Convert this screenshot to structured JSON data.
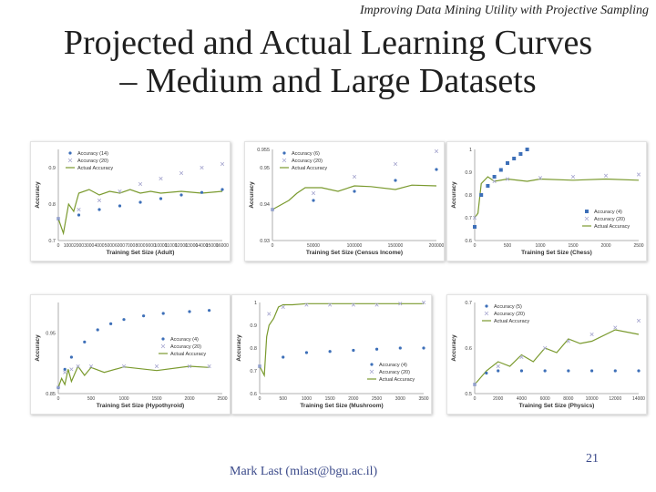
{
  "slide": {
    "header_note": "Improving Data Mining Utility with Projective Sampling",
    "title_line1": "Projected and Actual Learning Curves",
    "title_line2": "– Medium and Large Datasets",
    "author": "Mark Last (mlast@bgu.ac.il)",
    "page_number": "21"
  },
  "colors": {
    "projection_a": "#3d6fb8",
    "projection_b": "#a8a8d0",
    "actual": "#7a9a2e",
    "text": "#3b4a8a"
  },
  "chart_data": [
    {
      "type": "line",
      "xlabel": "Training Set Size (Adult)",
      "ylabel": "Accuracy",
      "xlim": [
        0,
        16000
      ],
      "ylim": [
        0.7,
        0.95
      ],
      "xticks": [
        0,
        1000,
        2000,
        3000,
        4000,
        5000,
        6000,
        7000,
        8000,
        9000,
        10000,
        11000,
        12000,
        13000,
        14000,
        15000,
        16000
      ],
      "yticks": [
        0.7,
        0.8,
        0.9
      ],
      "legend_position": "top-left",
      "series": [
        {
          "name": "Accuracy (14)",
          "style": "dots",
          "color": "#3d6fb8",
          "x": [
            0,
            2000,
            4000,
            6000,
            8000,
            10000,
            12000,
            14000,
            16000
          ],
          "y": [
            0.76,
            0.77,
            0.785,
            0.795,
            0.805,
            0.815,
            0.825,
            0.832,
            0.84
          ]
        },
        {
          "name": "Accuracy (20)",
          "style": "cross",
          "color": "#a8a8d0",
          "x": [
            0,
            2000,
            4000,
            6000,
            8000,
            10000,
            12000,
            14000,
            16000
          ],
          "y": [
            0.76,
            0.785,
            0.81,
            0.835,
            0.855,
            0.87,
            0.885,
            0.9,
            0.91
          ]
        },
        {
          "name": "Actual Accuracy",
          "style": "line",
          "color": "#7a9a2e",
          "x": [
            0,
            500,
            1000,
            1500,
            2000,
            3000,
            4000,
            5000,
            6000,
            7000,
            8000,
            9000,
            10000,
            12000,
            14000,
            16000
          ],
          "y": [
            0.76,
            0.72,
            0.8,
            0.78,
            0.83,
            0.84,
            0.825,
            0.835,
            0.83,
            0.84,
            0.83,
            0.835,
            0.83,
            0.835,
            0.83,
            0.835
          ]
        }
      ]
    },
    {
      "type": "line",
      "xlabel": "Training Set Size (Census Income)",
      "ylabel": "Accuracy",
      "xlim": [
        0,
        200000
      ],
      "ylim": [
        0.93,
        0.955
      ],
      "xticks": [
        0,
        50000,
        100000,
        150000,
        200000
      ],
      "yticks": [
        0.93,
        0.94,
        0.95,
        0.955
      ],
      "legend_position": "top-left",
      "series": [
        {
          "name": "Accuracy (6)",
          "style": "dots",
          "color": "#3d6fb8",
          "x": [
            0,
            50000,
            100000,
            150000,
            200000
          ],
          "y": [
            0.9385,
            0.941,
            0.9435,
            0.9465,
            0.9495
          ]
        },
        {
          "name": "Accuracy (20)",
          "style": "cross",
          "color": "#a8a8d0",
          "x": [
            0,
            50000,
            100000,
            150000,
            200000
          ],
          "y": [
            0.9385,
            0.943,
            0.9475,
            0.951,
            0.9545
          ]
        },
        {
          "name": "Actual Accuracy",
          "style": "line",
          "color": "#7a9a2e",
          "x": [
            0,
            20000,
            30000,
            40000,
            60000,
            80000,
            100000,
            120000,
            150000,
            170000,
            200000
          ],
          "y": [
            0.9385,
            0.941,
            0.943,
            0.9445,
            0.9445,
            0.9435,
            0.945,
            0.9448,
            0.944,
            0.9452,
            0.945
          ]
        }
      ]
    },
    {
      "type": "line",
      "xlabel": "Training Set Size (Chess)",
      "ylabel": "Accuracy",
      "xlim": [
        0,
        2500
      ],
      "ylim": [
        0.6,
        1.0
      ],
      "xticks": [
        0,
        500,
        1000,
        1500,
        2000,
        2500
      ],
      "yticks": [
        0.6,
        0.7,
        0.8,
        0.9,
        1.0
      ],
      "legend_position": "bottom-right",
      "series": [
        {
          "name": "Accuracy (4)",
          "style": "square",
          "color": "#3d6fb8",
          "x": [
            0,
            100,
            200,
            300,
            400,
            500,
            600,
            700,
            800
          ],
          "y": [
            0.66,
            0.8,
            0.84,
            0.88,
            0.91,
            0.94,
            0.96,
            0.98,
            1.0
          ]
        },
        {
          "name": "Accuracy (20)",
          "style": "cross",
          "color": "#a8a8d0",
          "x": [
            0,
            300,
            500,
            1000,
            1500,
            2000,
            2500
          ],
          "y": [
            0.7,
            0.86,
            0.87,
            0.875,
            0.88,
            0.885,
            0.89
          ]
        },
        {
          "name": "Actual Accuracy",
          "style": "line",
          "color": "#7a9a2e",
          "x": [
            0,
            50,
            100,
            200,
            300,
            500,
            800,
            1000,
            1500,
            2000,
            2500
          ],
          "y": [
            0.7,
            0.72,
            0.85,
            0.88,
            0.86,
            0.87,
            0.86,
            0.87,
            0.865,
            0.87,
            0.865
          ]
        }
      ]
    },
    {
      "type": "line",
      "xlabel": "Training Set Size (Hypothyroid)",
      "ylabel": "Accuracy",
      "xlim": [
        0,
        2500
      ],
      "ylim": [
        0.85,
        1.0
      ],
      "xticks": [
        0,
        500,
        1000,
        1500,
        2000,
        2500
      ],
      "yticks": [
        0.85,
        0.95
      ],
      "legend_position": "center-right",
      "series": [
        {
          "name": "Accuracy (4)",
          "style": "dots",
          "color": "#3d6fb8",
          "x": [
            0,
            100,
            200,
            400,
            600,
            800,
            1000,
            1300,
            1600,
            2000,
            2300
          ],
          "y": [
            0.86,
            0.89,
            0.91,
            0.935,
            0.955,
            0.965,
            0.972,
            0.978,
            0.982,
            0.985,
            0.987
          ]
        },
        {
          "name": "Accuracy (20)",
          "style": "cross",
          "color": "#a8a8d0",
          "x": [
            0,
            100,
            200,
            300,
            500,
            1000,
            1500,
            2000,
            2300
          ],
          "y": [
            0.86,
            0.885,
            0.89,
            0.895,
            0.895,
            0.895,
            0.895,
            0.895,
            0.895
          ]
        },
        {
          "name": "Actual Accuracy",
          "style": "line",
          "color": "#7a9a2e",
          "x": [
            0,
            50,
            100,
            150,
            200,
            300,
            400,
            500,
            700,
            1000,
            1500,
            2000,
            2300
          ],
          "y": [
            0.86,
            0.875,
            0.865,
            0.89,
            0.87,
            0.895,
            0.88,
            0.893,
            0.885,
            0.894,
            0.888,
            0.895,
            0.893
          ]
        }
      ]
    },
    {
      "type": "line",
      "xlabel": "Training Set Size (Mushroom)",
      "ylabel": "Accuracy",
      "xlim": [
        0,
        3500
      ],
      "ylim": [
        0.6,
        1.0
      ],
      "xticks": [
        0,
        500,
        1000,
        1500,
        2000,
        2500,
        3000,
        3500
      ],
      "yticks": [
        0.6,
        0.7,
        0.8,
        0.9,
        1.0
      ],
      "legend_position": "bottom-right",
      "series": [
        {
          "name": "Accuracy (4)",
          "style": "dots",
          "color": "#3d6fb8",
          "x": [
            0,
            500,
            1000,
            1500,
            2000,
            2500,
            3000,
            3500
          ],
          "y": [
            0.72,
            0.76,
            0.78,
            0.785,
            0.79,
            0.795,
            0.8,
            0.8
          ]
        },
        {
          "name": "Accuracy (20)",
          "style": "cross",
          "color": "#a8a8d0",
          "x": [
            0,
            200,
            500,
            1000,
            1500,
            2000,
            2500,
            3000,
            3500
          ],
          "y": [
            0.72,
            0.95,
            0.98,
            0.99,
            0.99,
            0.99,
            0.99,
            0.995,
            1.0
          ]
        },
        {
          "name": "Actual Accuracy",
          "style": "line",
          "color": "#7a9a2e",
          "x": [
            0,
            100,
            150,
            200,
            300,
            400,
            500,
            700,
            1000,
            2000,
            3000,
            3500
          ],
          "y": [
            0.72,
            0.68,
            0.85,
            0.9,
            0.93,
            0.98,
            0.99,
            0.99,
            0.995,
            0.995,
            0.995,
            0.995
          ]
        }
      ]
    },
    {
      "type": "line",
      "xlabel": "Training Set Size (Physics)",
      "ylabel": "Accuracy",
      "xlim": [
        0,
        14000
      ],
      "ylim": [
        0.5,
        0.7
      ],
      "xticks": [
        0,
        2000,
        4000,
        6000,
        8000,
        10000,
        12000,
        14000
      ],
      "yticks": [
        0.5,
        0.6,
        0.7
      ],
      "legend_position": "top-left",
      "series": [
        {
          "name": "Accuracy (5)",
          "style": "dots",
          "color": "#3d6fb8",
          "x": [
            0,
            1000,
            2000,
            4000,
            6000,
            8000,
            10000,
            12000,
            14000
          ],
          "y": [
            0.52,
            0.545,
            0.55,
            0.55,
            0.55,
            0.55,
            0.55,
            0.55,
            0.55
          ]
        },
        {
          "name": "Accuracy (20)",
          "style": "cross",
          "color": "#a8a8d0",
          "x": [
            0,
            2000,
            4000,
            6000,
            8000,
            10000,
            12000,
            14000
          ],
          "y": [
            0.52,
            0.56,
            0.58,
            0.6,
            0.615,
            0.63,
            0.645,
            0.66
          ]
        },
        {
          "name": "Actual Accuracy",
          "style": "line",
          "color": "#7a9a2e",
          "x": [
            0,
            1000,
            2000,
            3000,
            4000,
            5000,
            6000,
            7000,
            8000,
            9000,
            10000,
            12000,
            14000
          ],
          "y": [
            0.52,
            0.55,
            0.57,
            0.56,
            0.585,
            0.57,
            0.6,
            0.59,
            0.62,
            0.61,
            0.615,
            0.64,
            0.63
          ]
        }
      ]
    }
  ]
}
